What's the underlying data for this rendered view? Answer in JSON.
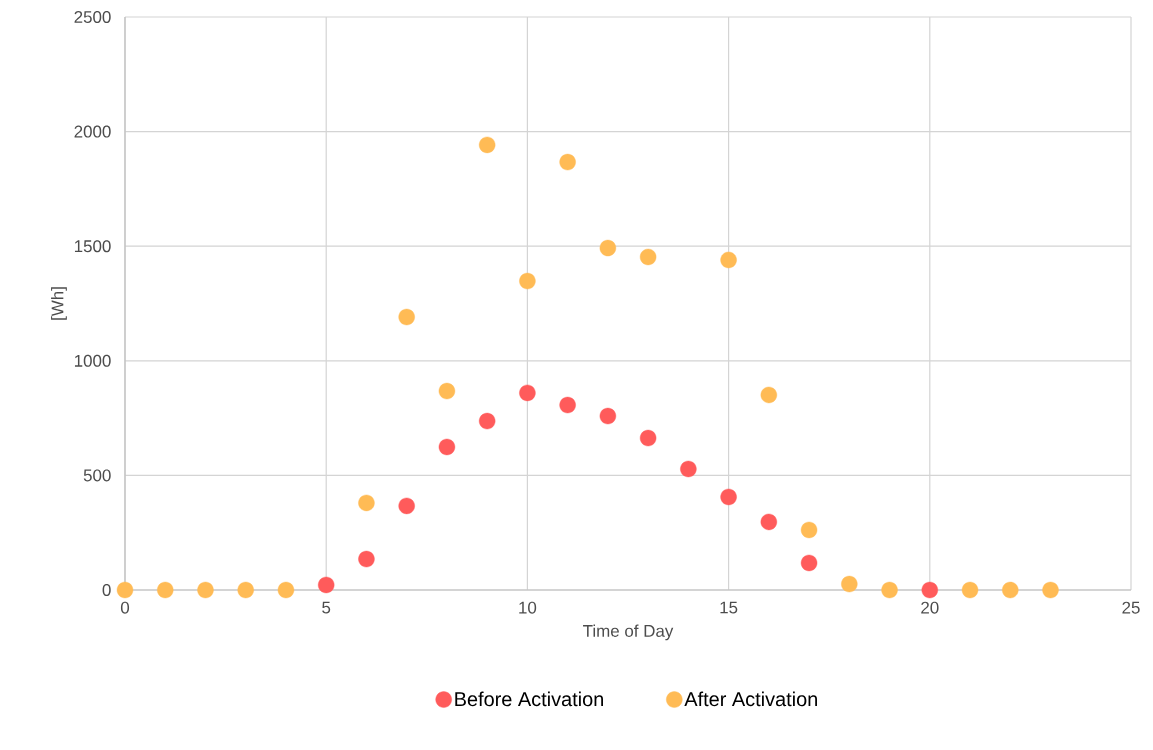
{
  "chart_data": {
    "type": "scatter",
    "xlabel": "Time of Day",
    "ylabel": "[Wh]",
    "x": [
      0,
      1,
      2,
      3,
      4,
      5,
      6,
      7,
      8,
      9,
      10,
      11,
      12,
      13,
      14,
      15,
      16,
      17,
      18,
      19,
      20,
      21,
      22,
      23
    ],
    "series": [
      {
        "name": "Before Activation",
        "color": "#ff5b5b",
        "values": [
          null,
          null,
          null,
          null,
          null,
          22,
          135,
          367,
          624,
          737,
          860,
          807,
          759,
          663,
          528,
          406,
          297,
          118,
          null,
          null,
          0,
          null,
          null,
          null
        ]
      },
      {
        "name": "After Activation",
        "color": "#ffbb55",
        "values": [
          0,
          0,
          0,
          0,
          0,
          null,
          380,
          1191,
          868,
          1942,
          1348,
          1867,
          1492,
          1453,
          null,
          1440,
          851,
          262,
          26,
          0,
          null,
          0,
          0,
          0
        ]
      }
    ],
    "xlim": [
      0,
      25
    ],
    "xticks": [
      0,
      5,
      10,
      15,
      20,
      25
    ],
    "ylim": [
      0,
      2500
    ],
    "yticks": [
      0,
      500,
      1000,
      1500,
      2000,
      2500
    ],
    "grid": true,
    "legend": "bottom",
    "marker": "circle"
  }
}
